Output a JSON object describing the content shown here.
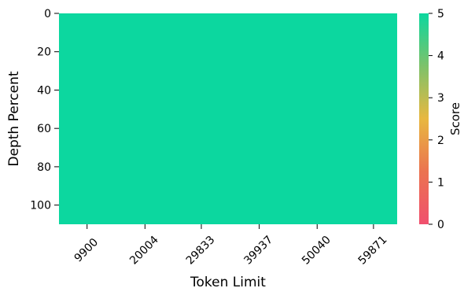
{
  "chart_data": {
    "type": "heatmap",
    "title": "",
    "xlabel": "Token Limit",
    "ylabel": "Depth Percent",
    "x_categories": [
      "9900",
      "20004",
      "29833",
      "39937",
      "50040",
      "59871"
    ],
    "x_range": [
      5000,
      64000
    ],
    "y_ticks": [
      0,
      20,
      40,
      60,
      80,
      100
    ],
    "ylim": [
      0,
      110
    ],
    "y_inverted": true,
    "cell_value": 5,
    "colorbar": {
      "label": "Score",
      "ticks": [
        0,
        1,
        2,
        3,
        4,
        5
      ],
      "range": [
        0,
        5
      ],
      "colors": [
        "#F0506E",
        "#EB7350",
        "#E8B840",
        "#7DC26A",
        "#0CD79F"
      ]
    }
  }
}
